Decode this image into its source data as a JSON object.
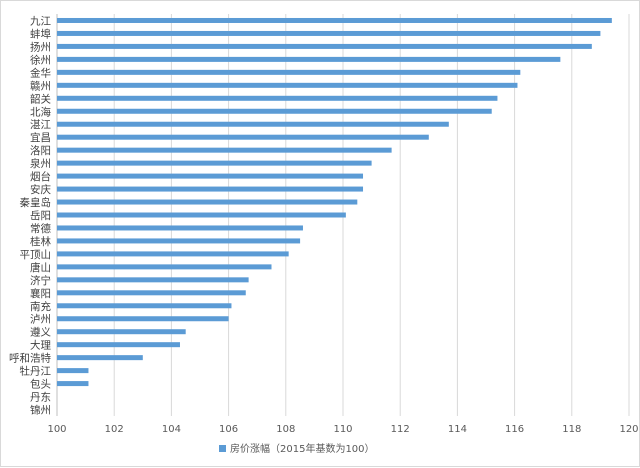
{
  "chart_data": {
    "type": "bar",
    "orientation": "horizontal",
    "categories": [
      "九江",
      "蚌埠",
      "扬州",
      "徐州",
      "金华",
      "赣州",
      "韶关",
      "北海",
      "湛江",
      "宜昌",
      "洛阳",
      "泉州",
      "烟台",
      "安庆",
      "秦皇岛",
      "岳阳",
      "常德",
      "桂林",
      "平顶山",
      "唐山",
      "济宁",
      "襄阳",
      "南充",
      "泸州",
      "遵义",
      "大理",
      "呼和浩特",
      "牡丹江",
      "包头",
      "丹东",
      "锦州"
    ],
    "series": [
      {
        "name": "房价涨幅（2015年基数为100）",
        "values": [
          119.4,
          119.0,
          118.7,
          117.6,
          116.2,
          116.1,
          115.4,
          115.2,
          113.7,
          113.0,
          111.7,
          111.0,
          110.7,
          110.7,
          110.5,
          110.1,
          108.6,
          108.5,
          108.1,
          107.5,
          106.7,
          106.6,
          106.1,
          106.0,
          104.5,
          104.3,
          103.0,
          101.1,
          101.1,
          100.0,
          100.0
        ],
        "color": "#5b9bd5"
      }
    ],
    "xlim": [
      100,
      120
    ],
    "xticks": [
      "100",
      "102",
      "104",
      "106",
      "108",
      "110",
      "112",
      "114",
      "116",
      "118",
      "120"
    ],
    "grid": true,
    "legend_position": "bottom"
  }
}
